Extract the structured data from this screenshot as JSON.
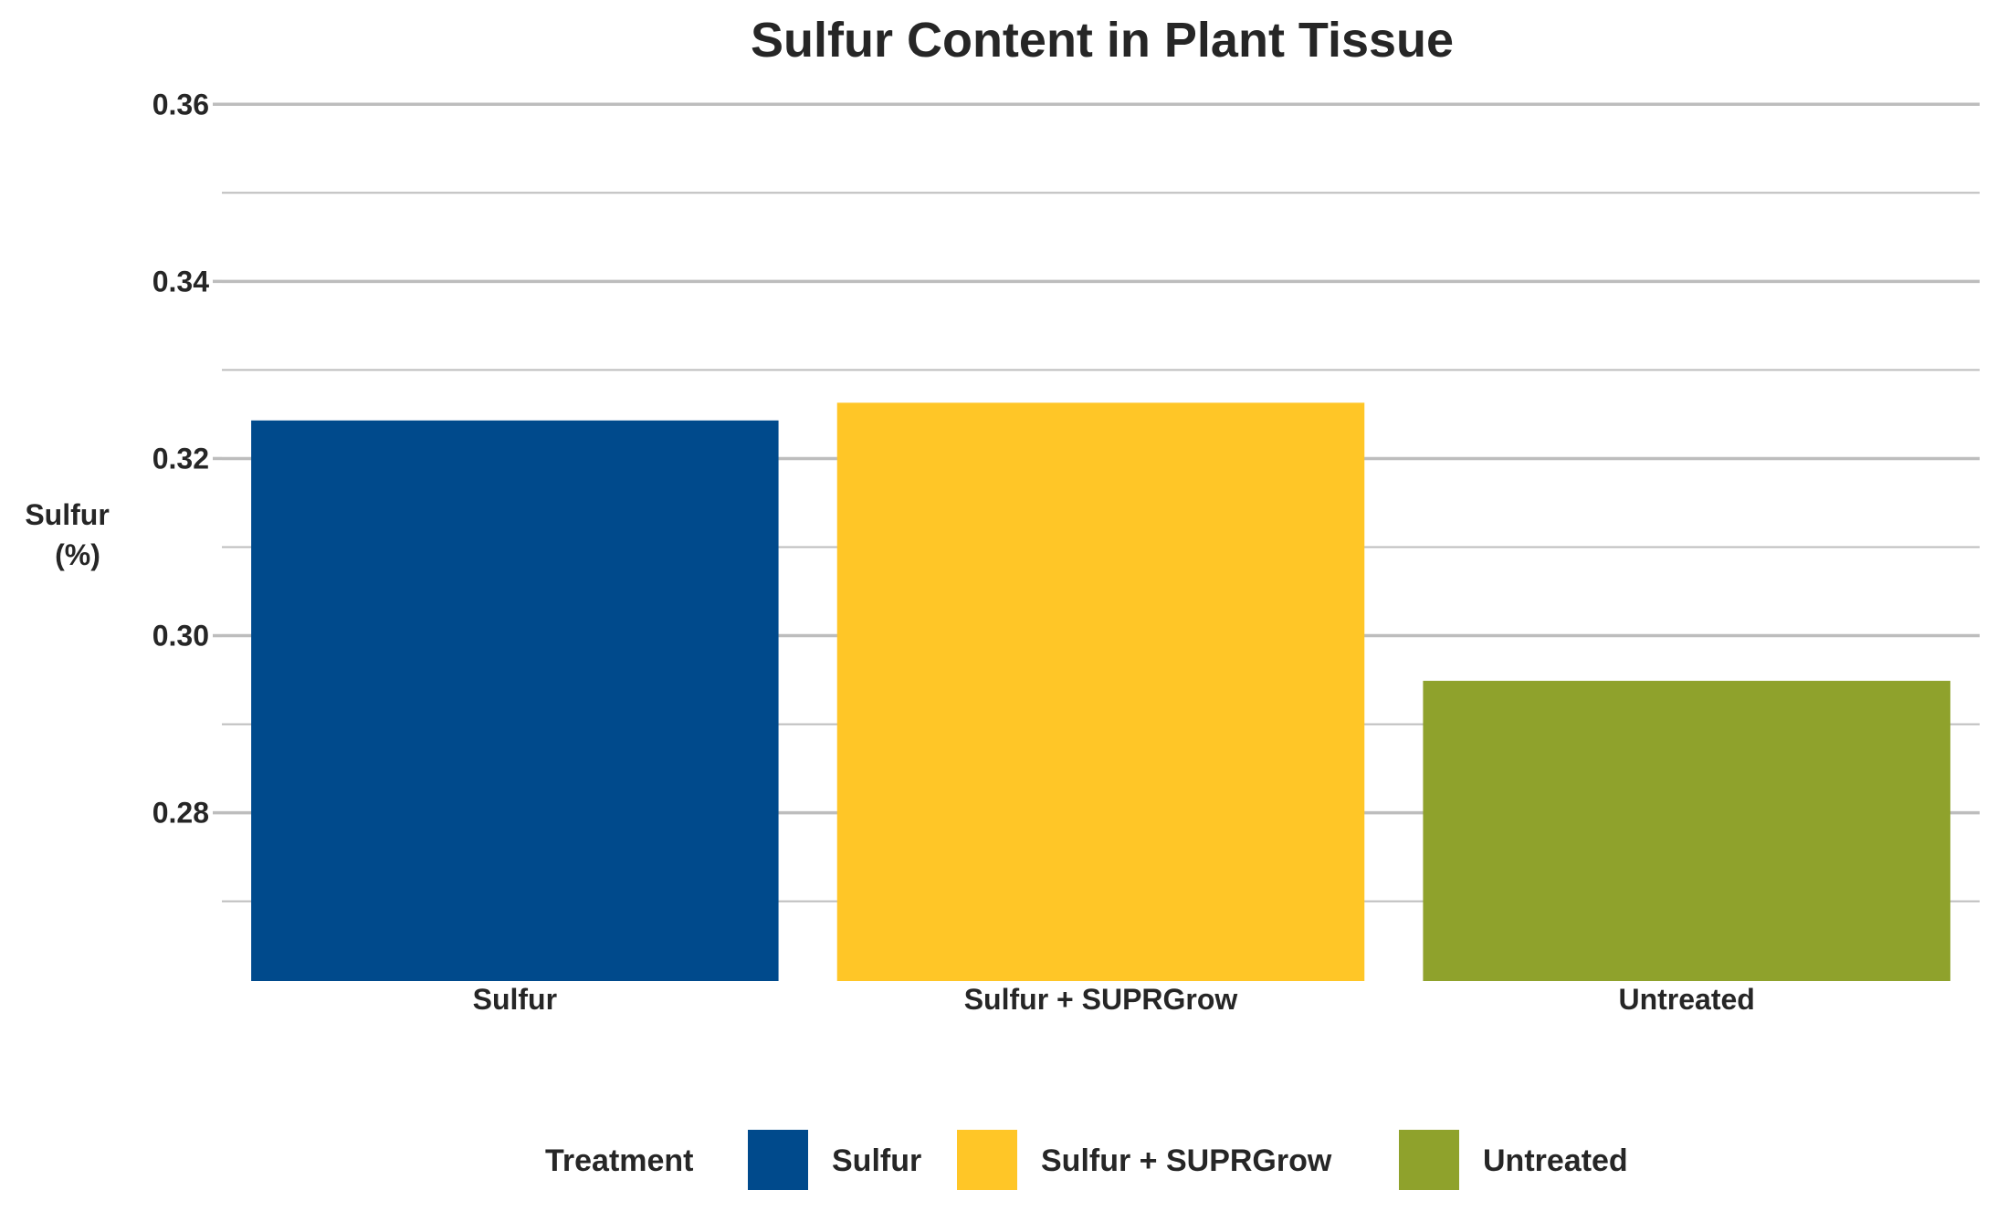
{
  "chart_data": {
    "type": "bar",
    "title": "Sulfur Content in Plant Tissue",
    "xlabel": "",
    "ylabel_lines": [
      "Sulfur",
      "(%)"
    ],
    "categories": [
      "Sulfur",
      "Sulfur + SUPRGrow",
      "Untreated"
    ],
    "values": [
      0.3243,
      0.3263,
      0.2949
    ],
    "colors": [
      "#004A8C",
      "#FFC627",
      "#8FA22C"
    ],
    "ylim": [
      0.261,
      0.3625
    ],
    "yticks": [
      0.28,
      0.3,
      0.32,
      0.34,
      0.36
    ],
    "ytick_labels": [
      "0.28",
      "0.30",
      "0.32",
      "0.34",
      "0.36"
    ],
    "minor_yticks": [
      0.27,
      0.29,
      0.31,
      0.33,
      0.35
    ],
    "grid": true,
    "grid_color": "#BDBDBD",
    "legend": {
      "title": "Treatment",
      "position": "bottom",
      "entries": [
        "Sulfur",
        "Sulfur + SUPRGrow",
        "Untreated"
      ]
    }
  }
}
